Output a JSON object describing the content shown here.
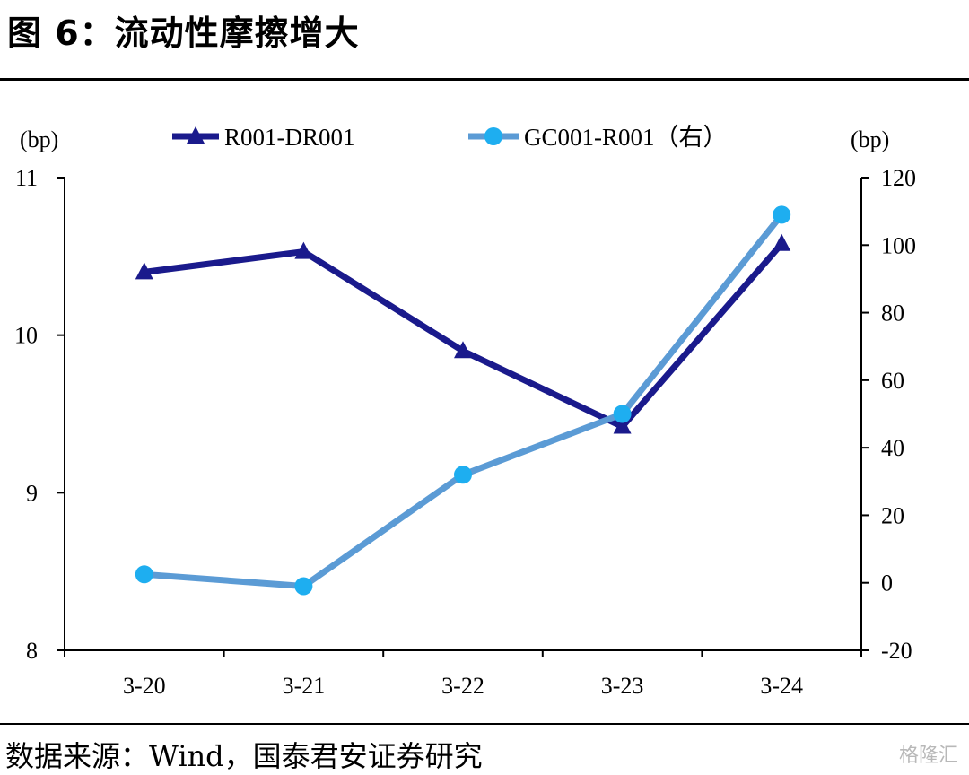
{
  "title": "图 6：流动性摩擦增大",
  "source": "数据来源：Wind，国泰君安证券研究",
  "watermark": "格隆汇",
  "chart_data": {
    "type": "line",
    "categories": [
      "3-20",
      "3-21",
      "3-22",
      "3-23",
      "3-24"
    ],
    "left_axis": {
      "unit_label": "(bp)",
      "ylim": [
        8,
        11
      ],
      "ticks": [
        "8",
        "9",
        "10",
        "11"
      ]
    },
    "right_axis": {
      "unit_label": "(bp)",
      "ylim": [
        -20,
        120
      ],
      "ticks": [
        "-20",
        "0",
        "20",
        "40",
        "60",
        "80",
        "100",
        "120"
      ]
    },
    "series": [
      {
        "name": "R001-DR001",
        "axis": "left",
        "color": "#1a1a8c",
        "marker": "triangle",
        "values": [
          10.4,
          10.53,
          9.9,
          9.42,
          10.58
        ]
      },
      {
        "name": "GC001-R001（右）",
        "axis": "right",
        "color": "#5b9bd5",
        "marker_color": "#1eaef0",
        "marker": "circle",
        "values": [
          2.5,
          -1,
          32,
          50,
          109
        ]
      }
    ],
    "legend_position": "top-center",
    "grid": false
  }
}
